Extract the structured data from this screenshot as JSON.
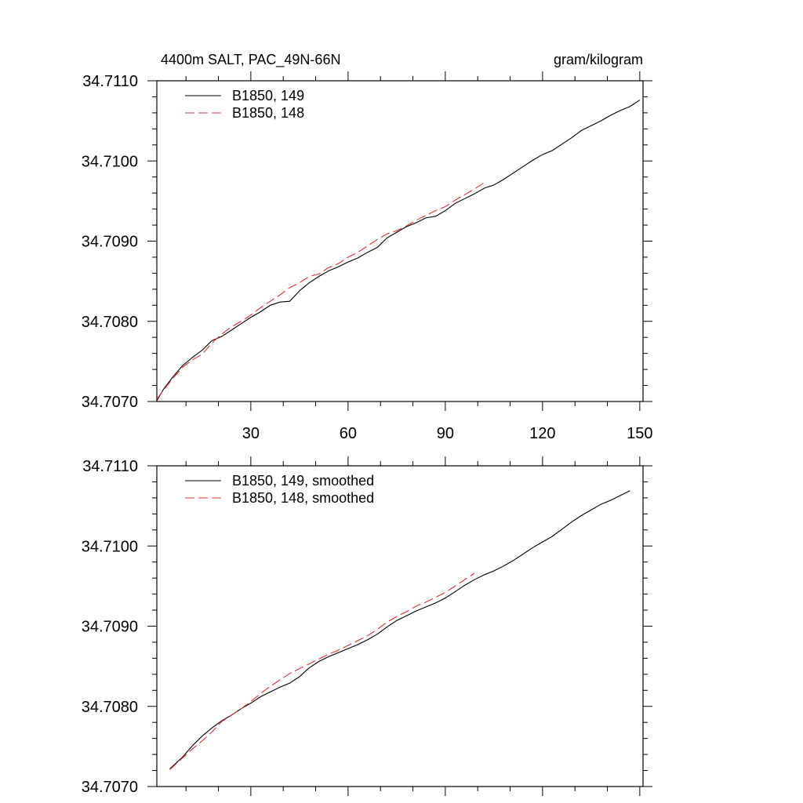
{
  "chart_data": [
    {
      "type": "line",
      "title_left": "4400m SALT, PAC_49N-66N",
      "title_right": "gram/kilogram",
      "xlim": [
        1,
        151
      ],
      "ylim": [
        34.707,
        34.711
      ],
      "xticks": [
        30,
        60,
        90,
        120,
        150
      ],
      "xtick_labels": [
        "30",
        "60",
        "90",
        "120",
        "150"
      ],
      "yticks": [
        34.707,
        34.708,
        34.709,
        34.71,
        34.711
      ],
      "ytick_labels": [
        "34.7070",
        "34.7080",
        "34.7090",
        "34.7100",
        "34.7110"
      ],
      "legend": "top-left",
      "series": [
        {
          "name": "B1850, 149",
          "color": "#000000",
          "style": "solid",
          "x": [
            1,
            3,
            6,
            9,
            12,
            15,
            18,
            21,
            24,
            27,
            30,
            33,
            36,
            39,
            42,
            45,
            48,
            51,
            54,
            57,
            60,
            63,
            66,
            69,
            72,
            75,
            78,
            81,
            84,
            87,
            90,
            93,
            96,
            99,
            102,
            105,
            108,
            111,
            114,
            117,
            120,
            123,
            126,
            129,
            132,
            135,
            138,
            141,
            144,
            147,
            150
          ],
          "y": [
            34.70701,
            34.70715,
            34.70731,
            34.70745,
            34.70755,
            34.70764,
            34.70776,
            34.70781,
            34.70789,
            34.70797,
            34.70805,
            34.70812,
            34.7082,
            34.70824,
            34.70825,
            34.70838,
            34.70848,
            34.70856,
            34.70863,
            34.70868,
            34.70874,
            34.70879,
            34.70886,
            34.70892,
            34.70904,
            34.70911,
            34.70918,
            34.70923,
            34.70929,
            34.70931,
            34.70938,
            34.70947,
            34.70953,
            34.70959,
            34.70966,
            34.7097,
            34.70977,
            34.70985,
            34.70993,
            34.71001,
            34.71008,
            34.71013,
            34.71021,
            34.71029,
            34.71038,
            34.71044,
            34.7105,
            34.71057,
            34.71063,
            34.71068,
            34.71076
          ]
        },
        {
          "name": "B1850, 148",
          "color": "#e03030",
          "style": "dashed",
          "x": [
            1,
            3,
            6,
            9,
            12,
            15,
            18,
            21,
            24,
            27,
            30,
            33,
            36,
            39,
            42,
            45,
            48,
            51,
            54,
            57,
            60,
            63,
            66,
            69,
            72,
            75,
            78,
            81,
            84,
            87,
            90,
            93,
            96,
            99,
            102
          ],
          "y": [
            34.70703,
            34.70714,
            34.70729,
            34.70743,
            34.70752,
            34.70759,
            34.70773,
            34.70784,
            34.70793,
            34.708,
            34.70808,
            34.70817,
            34.70825,
            34.70833,
            34.70842,
            34.70848,
            34.70856,
            34.70859,
            34.70867,
            34.70872,
            34.7088,
            34.70886,
            34.70894,
            34.70902,
            34.70909,
            34.70913,
            34.70919,
            34.70926,
            34.70932,
            34.70938,
            34.70943,
            34.70951,
            34.70958,
            34.70965,
            34.70973
          ]
        }
      ]
    },
    {
      "type": "line",
      "xlim": [
        1,
        151
      ],
      "ylim": [
        34.707,
        34.711
      ],
      "xticks": [
        30,
        60,
        90,
        120,
        150
      ],
      "yticks": [
        34.707,
        34.708,
        34.709,
        34.71,
        34.711
      ],
      "ytick_labels": [
        "34.7070",
        "34.7080",
        "34.7090",
        "34.7100",
        "34.7110"
      ],
      "legend": "top-left",
      "series": [
        {
          "name": "B1850, 149, smoothed",
          "color": "#000000",
          "style": "solid",
          "x": [
            5,
            9,
            12,
            15,
            18,
            21,
            24,
            27,
            30,
            33,
            36,
            39,
            42,
            45,
            48,
            51,
            54,
            57,
            60,
            63,
            66,
            69,
            72,
            75,
            78,
            81,
            84,
            87,
            90,
            93,
            96,
            99,
            102,
            105,
            108,
            111,
            114,
            117,
            120,
            123,
            126,
            129,
            132,
            135,
            138,
            141,
            144,
            147
          ],
          "y": [
            34.70722,
            34.70737,
            34.70751,
            34.70763,
            34.70773,
            34.70782,
            34.70789,
            34.70797,
            34.70804,
            34.70812,
            34.70818,
            34.70824,
            34.70829,
            34.70837,
            34.70848,
            34.70856,
            34.70862,
            34.70867,
            34.70872,
            34.70877,
            34.70883,
            34.7089,
            34.70899,
            34.70907,
            34.70913,
            34.70919,
            34.70924,
            34.70929,
            34.70935,
            34.70943,
            34.70951,
            34.70958,
            34.70964,
            34.70969,
            34.70975,
            34.70982,
            34.7099,
            34.70998,
            34.71005,
            34.71012,
            34.71021,
            34.7103,
            34.71038,
            34.71045,
            34.71052,
            34.71057,
            34.71063,
            34.71069
          ]
        },
        {
          "name": "B1850, 148, smoothed",
          "color": "#e03030",
          "style": "dashed",
          "x": [
            5,
            9,
            12,
            15,
            18,
            21,
            24,
            27,
            30,
            33,
            36,
            39,
            42,
            45,
            48,
            51,
            54,
            57,
            60,
            63,
            66,
            69,
            72,
            75,
            78,
            81,
            84,
            87,
            90,
            93,
            96,
            99
          ],
          "y": [
            34.70721,
            34.70736,
            34.70747,
            34.70757,
            34.70768,
            34.70781,
            34.70789,
            34.70797,
            34.70806,
            34.70816,
            34.70825,
            34.70833,
            34.70841,
            34.70847,
            34.70853,
            34.70859,
            34.70865,
            34.7087,
            34.70876,
            34.70882,
            34.70888,
            34.70896,
            34.70905,
            34.70912,
            34.70918,
            34.70925,
            34.7093,
            34.70936,
            34.70942,
            34.7095,
            34.70958,
            34.70966
          ]
        }
      ]
    }
  ]
}
